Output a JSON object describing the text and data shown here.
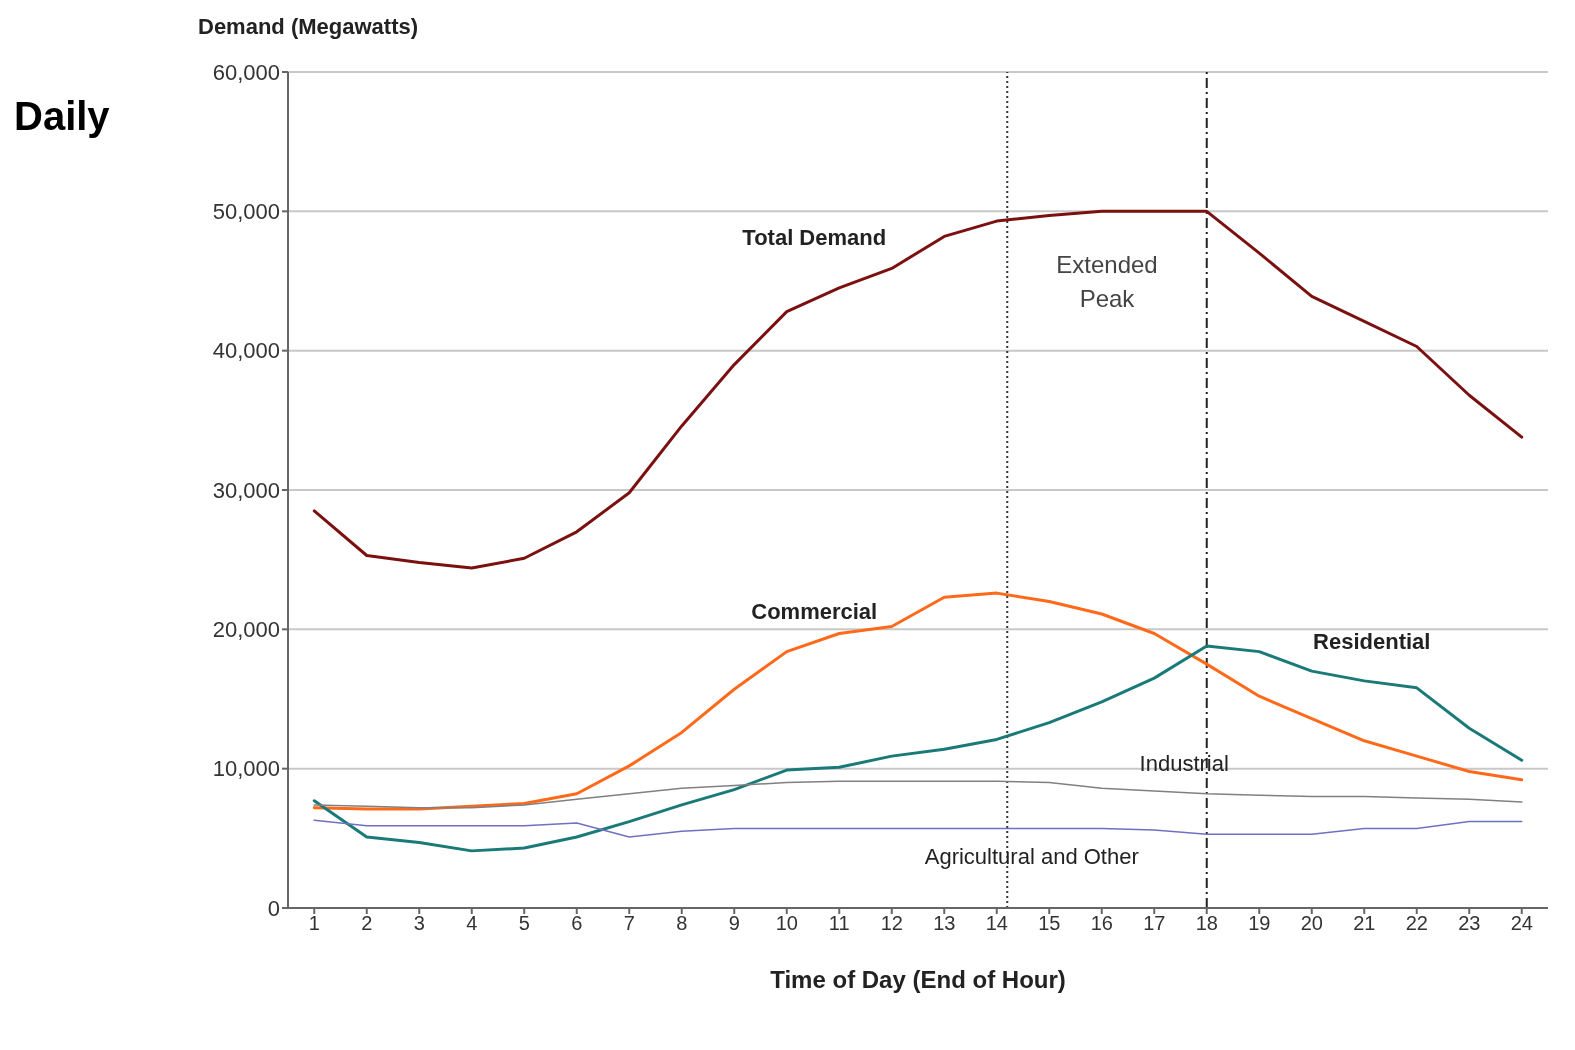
{
  "chart_data": {
    "type": "line",
    "title": "Daily",
    "ylabel": "Demand (Megawatts)",
    "xlabel": "Time of Day (End of Hour)",
    "x": [
      1,
      2,
      3,
      4,
      5,
      6,
      7,
      8,
      9,
      10,
      11,
      12,
      13,
      14,
      15,
      16,
      17,
      18,
      19,
      20,
      21,
      22,
      23,
      24
    ],
    "xlim": [
      0.5,
      24.5
    ],
    "xticks": [
      1,
      2,
      3,
      4,
      5,
      6,
      7,
      8,
      9,
      10,
      11,
      12,
      13,
      14,
      15,
      16,
      17,
      18,
      19,
      20,
      21,
      22,
      23,
      24
    ],
    "ylim": [
      0,
      60000
    ],
    "yticks": [
      {
        "value": 0,
        "label": "0"
      },
      {
        "value": 10000,
        "label": "10,000"
      },
      {
        "value": 20000,
        "label": "20,000"
      },
      {
        "value": 30000,
        "label": "30,000"
      },
      {
        "value": 40000,
        "label": "40,000"
      },
      {
        "value": 50000,
        "label": "50,000"
      },
      {
        "value": 60000,
        "label": "60,000"
      }
    ],
    "grid": "y",
    "legend": false,
    "marker": "none",
    "line_style": "solid",
    "series": [
      {
        "name": "Total Demand",
        "color": "#7b1010",
        "values": [
          28500,
          25300,
          24800,
          24400,
          25100,
          27000,
          29800,
          34600,
          39000,
          42800,
          44500,
          45900,
          48200,
          49300,
          49700,
          50000,
          50000,
          50000,
          47000,
          43900,
          42100,
          40300,
          36800,
          33800
        ]
      },
      {
        "name": "Commercial",
        "color": "#ff6a1a",
        "values": [
          7200,
          7100,
          7100,
          7300,
          7500,
          8200,
          10200,
          12600,
          15700,
          18400,
          19700,
          20200,
          22300,
          22600,
          22000,
          21100,
          19700,
          17500,
          15200,
          13600,
          12000,
          10900,
          9800,
          9200
        ]
      },
      {
        "name": "Residential",
        "color": "#1a7a78",
        "values": [
          7700,
          5100,
          4700,
          4100,
          4300,
          5100,
          6200,
          7400,
          8500,
          9900,
          10100,
          10900,
          11400,
          12100,
          13300,
          14800,
          16500,
          18800,
          18400,
          17000,
          16300,
          15800,
          12900,
          10600
        ]
      },
      {
        "name": "Industrial",
        "color": "#808080",
        "values": [
          7400,
          7300,
          7200,
          7200,
          7400,
          7800,
          8200,
          8600,
          8800,
          9000,
          9100,
          9100,
          9100,
          9100,
          9000,
          8600,
          8400,
          8200,
          8100,
          8000,
          8000,
          7900,
          7800,
          7600
        ]
      },
      {
        "name": "Agricultural and Other",
        "color": "#7070c0",
        "values": [
          6300,
          5900,
          5900,
          5900,
          5900,
          6100,
          5100,
          5500,
          5700,
          5700,
          5700,
          5700,
          5700,
          5700,
          5700,
          5700,
          5600,
          5300,
          5300,
          5300,
          5700,
          5700,
          6200,
          6200
        ]
      }
    ],
    "ref_lines": [
      {
        "axis": "x",
        "value": 14.2,
        "line_style": "dotted",
        "color": "#333333"
      },
      {
        "axis": "x",
        "value": 18,
        "line_style": "dashed",
        "color": "#222222"
      }
    ],
    "annotations": [
      "Extended Peak"
    ]
  }
}
